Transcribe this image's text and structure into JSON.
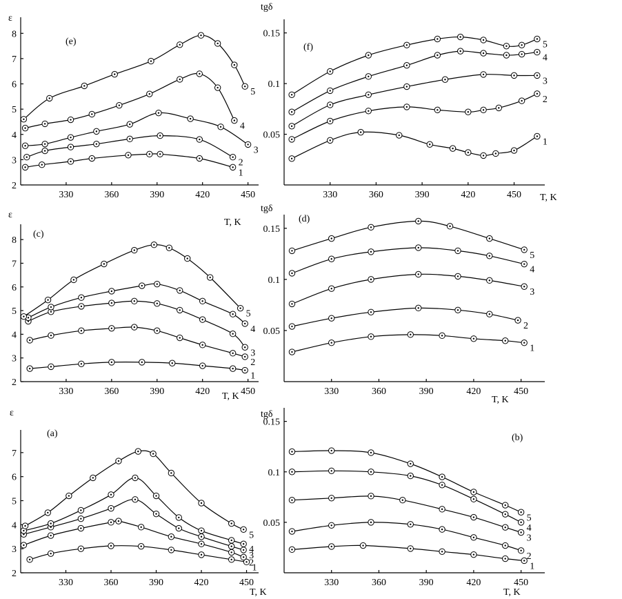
{
  "chart_data": [
    {
      "panel_label": "(e)",
      "type": "line",
      "ylabel": "ε",
      "xlabel": "T, K",
      "xticks": [
        "330",
        "360",
        "390",
        "420",
        "450"
      ],
      "yticks": [
        "2",
        "3",
        "4",
        "5",
        "6",
        "7",
        "8"
      ],
      "xlim": [
        300,
        457
      ],
      "ylim": [
        2,
        8.5
      ],
      "series": [
        {
          "name": "1",
          "x": [
            303,
            314,
            333,
            347,
            371,
            385,
            392,
            418,
            440
          ],
          "y": [
            2.7,
            2.8,
            2.93,
            3.05,
            3.18,
            3.22,
            3.22,
            3.05,
            2.7
          ]
        },
        {
          "name": "2",
          "x": [
            304,
            316,
            333,
            350,
            372,
            392,
            418,
            440
          ],
          "y": [
            3.1,
            3.35,
            3.5,
            3.62,
            3.82,
            3.95,
            3.8,
            3.1
          ]
        },
        {
          "name": "3",
          "x": [
            303,
            316,
            333,
            350,
            372,
            391,
            412,
            432,
            450
          ],
          "y": [
            3.55,
            3.62,
            3.88,
            4.12,
            4.4,
            4.85,
            4.62,
            4.3,
            3.6
          ]
        },
        {
          "name": "4",
          "x": [
            303,
            316,
            333,
            347,
            365,
            385,
            405,
            418,
            430,
            441
          ],
          "y": [
            4.25,
            4.42,
            4.58,
            4.8,
            5.15,
            5.6,
            6.18,
            6.4,
            5.85,
            4.55
          ]
        },
        {
          "name": "5",
          "x": [
            302,
            319,
            342,
            362,
            386,
            405,
            419,
            430,
            441,
            448
          ],
          "y": [
            4.6,
            5.43,
            5.92,
            6.38,
            6.9,
            7.55,
            7.92,
            7.6,
            6.75,
            5.9
          ]
        }
      ]
    },
    {
      "panel_label": "(f)",
      "type": "line",
      "ylabel": "tgδ",
      "xlabel": "T, K",
      "xticks": [
        "330",
        "360",
        "390",
        "420",
        "450"
      ],
      "yticks": [
        "0.05",
        "0.1",
        "0.15"
      ],
      "xlim": [
        300,
        470
      ],
      "ylim": [
        0,
        0.16
      ],
      "series": [
        {
          "name": "1",
          "x": [
            305,
            330,
            350,
            375,
            395,
            410,
            420,
            430,
            438,
            450,
            465
          ],
          "y": [
            0.026,
            0.044,
            0.052,
            0.049,
            0.04,
            0.036,
            0.032,
            0.029,
            0.031,
            0.034,
            0.048
          ]
        },
        {
          "name": "2",
          "x": [
            305,
            330,
            355,
            380,
            400,
            420,
            430,
            440,
            455,
            465
          ],
          "y": [
            0.045,
            0.063,
            0.073,
            0.077,
            0.074,
            0.072,
            0.074,
            0.076,
            0.083,
            0.09
          ]
        },
        {
          "name": "3",
          "x": [
            305,
            330,
            355,
            380,
            405,
            430,
            450,
            465
          ],
          "y": [
            0.058,
            0.079,
            0.089,
            0.097,
            0.104,
            0.109,
            0.108,
            0.108
          ]
        },
        {
          "name": "4",
          "x": [
            305,
            330,
            355,
            380,
            400,
            415,
            430,
            445,
            455,
            465
          ],
          "y": [
            0.072,
            0.093,
            0.107,
            0.118,
            0.128,
            0.132,
            0.13,
            0.128,
            0.129,
            0.131
          ]
        },
        {
          "name": "5",
          "x": [
            305,
            330,
            355,
            380,
            400,
            415,
            430,
            445,
            455,
            465
          ],
          "y": [
            0.089,
            0.112,
            0.128,
            0.138,
            0.144,
            0.146,
            0.143,
            0.137,
            0.138,
            0.144
          ]
        }
      ]
    },
    {
      "panel_label": "(c)",
      "type": "line",
      "ylabel": "ε",
      "xlabel": "T, K",
      "xticks": [
        "330",
        "360",
        "390",
        "420",
        "450"
      ],
      "yticks": [
        "2",
        "3",
        "4",
        "5",
        "6",
        "7",
        "8"
      ],
      "xlim": [
        300,
        457
      ],
      "ylim": [
        2,
        8.5
      ],
      "series": [
        {
          "name": "1",
          "x": [
            306,
            320,
            340,
            360,
            380,
            400,
            420,
            440,
            448
          ],
          "y": [
            2.55,
            2.63,
            2.75,
            2.82,
            2.82,
            2.78,
            2.67,
            2.55,
            2.48
          ]
        },
        {
          "name": "2",
          "x": [
            306,
            320,
            340,
            360,
            375,
            390,
            405,
            420,
            440,
            448
          ],
          "y": [
            3.75,
            3.95,
            4.15,
            4.25,
            4.3,
            4.15,
            3.85,
            3.55,
            3.2,
            3.05
          ]
        },
        {
          "name": "3",
          "x": [
            305,
            320,
            340,
            360,
            375,
            390,
            405,
            420,
            440,
            448
          ],
          "y": [
            4.55,
            4.95,
            5.18,
            5.32,
            5.4,
            5.3,
            5.02,
            4.62,
            4.02,
            3.45
          ]
        },
        {
          "name": "4",
          "x": [
            305,
            320,
            340,
            360,
            380,
            390,
            405,
            420,
            440,
            448
          ],
          "y": [
            4.7,
            5.15,
            5.55,
            5.82,
            6.05,
            6.12,
            5.85,
            5.4,
            4.85,
            4.45
          ]
        },
        {
          "name": "5",
          "x": [
            302,
            318,
            335,
            355,
            375,
            388,
            398,
            410,
            425,
            445
          ],
          "y": [
            4.75,
            5.45,
            6.3,
            6.97,
            7.55,
            7.78,
            7.65,
            7.2,
            6.4,
            5.1
          ]
        }
      ]
    },
    {
      "panel_label": "(d)",
      "type": "line",
      "ylabel": "tgδ",
      "xlabel": "T, K",
      "xticks": [
        "330",
        "360",
        "390",
        "420",
        "450"
      ],
      "yticks": [
        "0.05",
        "0.1",
        "0.15"
      ],
      "xlim": [
        300,
        465
      ],
      "ylim": [
        0,
        0.16
      ],
      "series": [
        {
          "name": "1",
          "x": [
            305,
            330,
            355,
            380,
            400,
            420,
            440,
            452
          ],
          "y": [
            0.029,
            0.038,
            0.044,
            0.046,
            0.045,
            0.042,
            0.04,
            0.038
          ]
        },
        {
          "name": "2",
          "x": [
            305,
            330,
            355,
            385,
            410,
            430,
            448
          ],
          "y": [
            0.054,
            0.062,
            0.068,
            0.072,
            0.07,
            0.066,
            0.06
          ]
        },
        {
          "name": "3",
          "x": [
            305,
            330,
            355,
            385,
            410,
            430,
            452
          ],
          "y": [
            0.076,
            0.091,
            0.1,
            0.105,
            0.103,
            0.099,
            0.093
          ]
        },
        {
          "name": "4",
          "x": [
            305,
            330,
            355,
            385,
            410,
            430,
            452
          ],
          "y": [
            0.106,
            0.12,
            0.127,
            0.131,
            0.128,
            0.123,
            0.115
          ]
        },
        {
          "name": "5",
          "x": [
            305,
            330,
            355,
            385,
            405,
            430,
            452
          ],
          "y": [
            0.128,
            0.14,
            0.151,
            0.157,
            0.152,
            0.14,
            0.129
          ]
        }
      ]
    },
    {
      "panel_label": "(a)",
      "type": "line",
      "ylabel": "ε",
      "xlabel": "T, K",
      "xticks": [
        "330",
        "360",
        "390",
        "420",
        "450"
      ],
      "yticks": [
        "2",
        "3",
        "4",
        "5",
        "6",
        "7"
      ],
      "xlim": [
        300,
        458
      ],
      "ylim": [
        2,
        7.8
      ],
      "series": [
        {
          "name": "1",
          "x": [
            306,
            320,
            340,
            360,
            380,
            400,
            420,
            440,
            450
          ],
          "y": [
            2.55,
            2.8,
            3.0,
            3.12,
            3.1,
            2.95,
            2.75,
            2.55,
            2.45
          ]
        },
        {
          "name": "2",
          "x": [
            302,
            320,
            340,
            360,
            365,
            380,
            400,
            420,
            440,
            448
          ],
          "y": [
            3.15,
            3.55,
            3.85,
            4.1,
            4.15,
            3.9,
            3.5,
            3.2,
            2.85,
            2.65
          ]
        },
        {
          "name": "3",
          "x": [
            302,
            320,
            340,
            360,
            376,
            390,
            405,
            420,
            440,
            448
          ],
          "y": [
            3.6,
            3.9,
            4.25,
            4.68,
            5.05,
            4.45,
            3.85,
            3.5,
            3.1,
            2.95
          ]
        },
        {
          "name": "4",
          "x": [
            302,
            320,
            340,
            360,
            376,
            390,
            405,
            420,
            440,
            448
          ],
          "y": [
            3.75,
            4.05,
            4.6,
            5.25,
            5.95,
            5.2,
            4.3,
            3.75,
            3.35,
            3.2
          ]
        },
        {
          "name": "5",
          "x": [
            303,
            318,
            332,
            348,
            365,
            378,
            388,
            400,
            420,
            440,
            448
          ],
          "y": [
            3.95,
            4.5,
            5.2,
            5.95,
            6.65,
            7.05,
            6.95,
            6.15,
            4.9,
            4.05,
            3.8
          ]
        }
      ]
    },
    {
      "panel_label": "(b)",
      "type": "line",
      "ylabel": "tgδ",
      "xlabel": "T, K",
      "xticks": [
        "330",
        "360",
        "390",
        "420",
        "450"
      ],
      "yticks": [
        "0.05",
        "0.1",
        "0.15"
      ],
      "xlim": [
        300,
        465
      ],
      "ylim": [
        0,
        0.16
      ],
      "series": [
        {
          "name": "1",
          "x": [
            305,
            330,
            350,
            380,
            400,
            420,
            440,
            452
          ],
          "y": [
            0.023,
            0.026,
            0.027,
            0.024,
            0.021,
            0.018,
            0.014,
            0.012
          ]
        },
        {
          "name": "2",
          "x": [
            305,
            330,
            355,
            380,
            400,
            420,
            440,
            450
          ],
          "y": [
            0.041,
            0.047,
            0.05,
            0.048,
            0.043,
            0.035,
            0.027,
            0.022
          ]
        },
        {
          "name": "3",
          "x": [
            305,
            330,
            355,
            375,
            400,
            420,
            440,
            450
          ],
          "y": [
            0.072,
            0.074,
            0.076,
            0.072,
            0.063,
            0.055,
            0.045,
            0.04
          ]
        },
        {
          "name": "4",
          "x": [
            305,
            330,
            355,
            380,
            400,
            420,
            440,
            450
          ],
          "y": [
            0.1,
            0.101,
            0.1,
            0.096,
            0.087,
            0.073,
            0.058,
            0.05
          ]
        },
        {
          "name": "5",
          "x": [
            305,
            330,
            355,
            380,
            400,
            420,
            440,
            450
          ],
          "y": [
            0.12,
            0.121,
            0.119,
            0.108,
            0.095,
            0.08,
            0.067,
            0.06
          ]
        }
      ]
    }
  ]
}
